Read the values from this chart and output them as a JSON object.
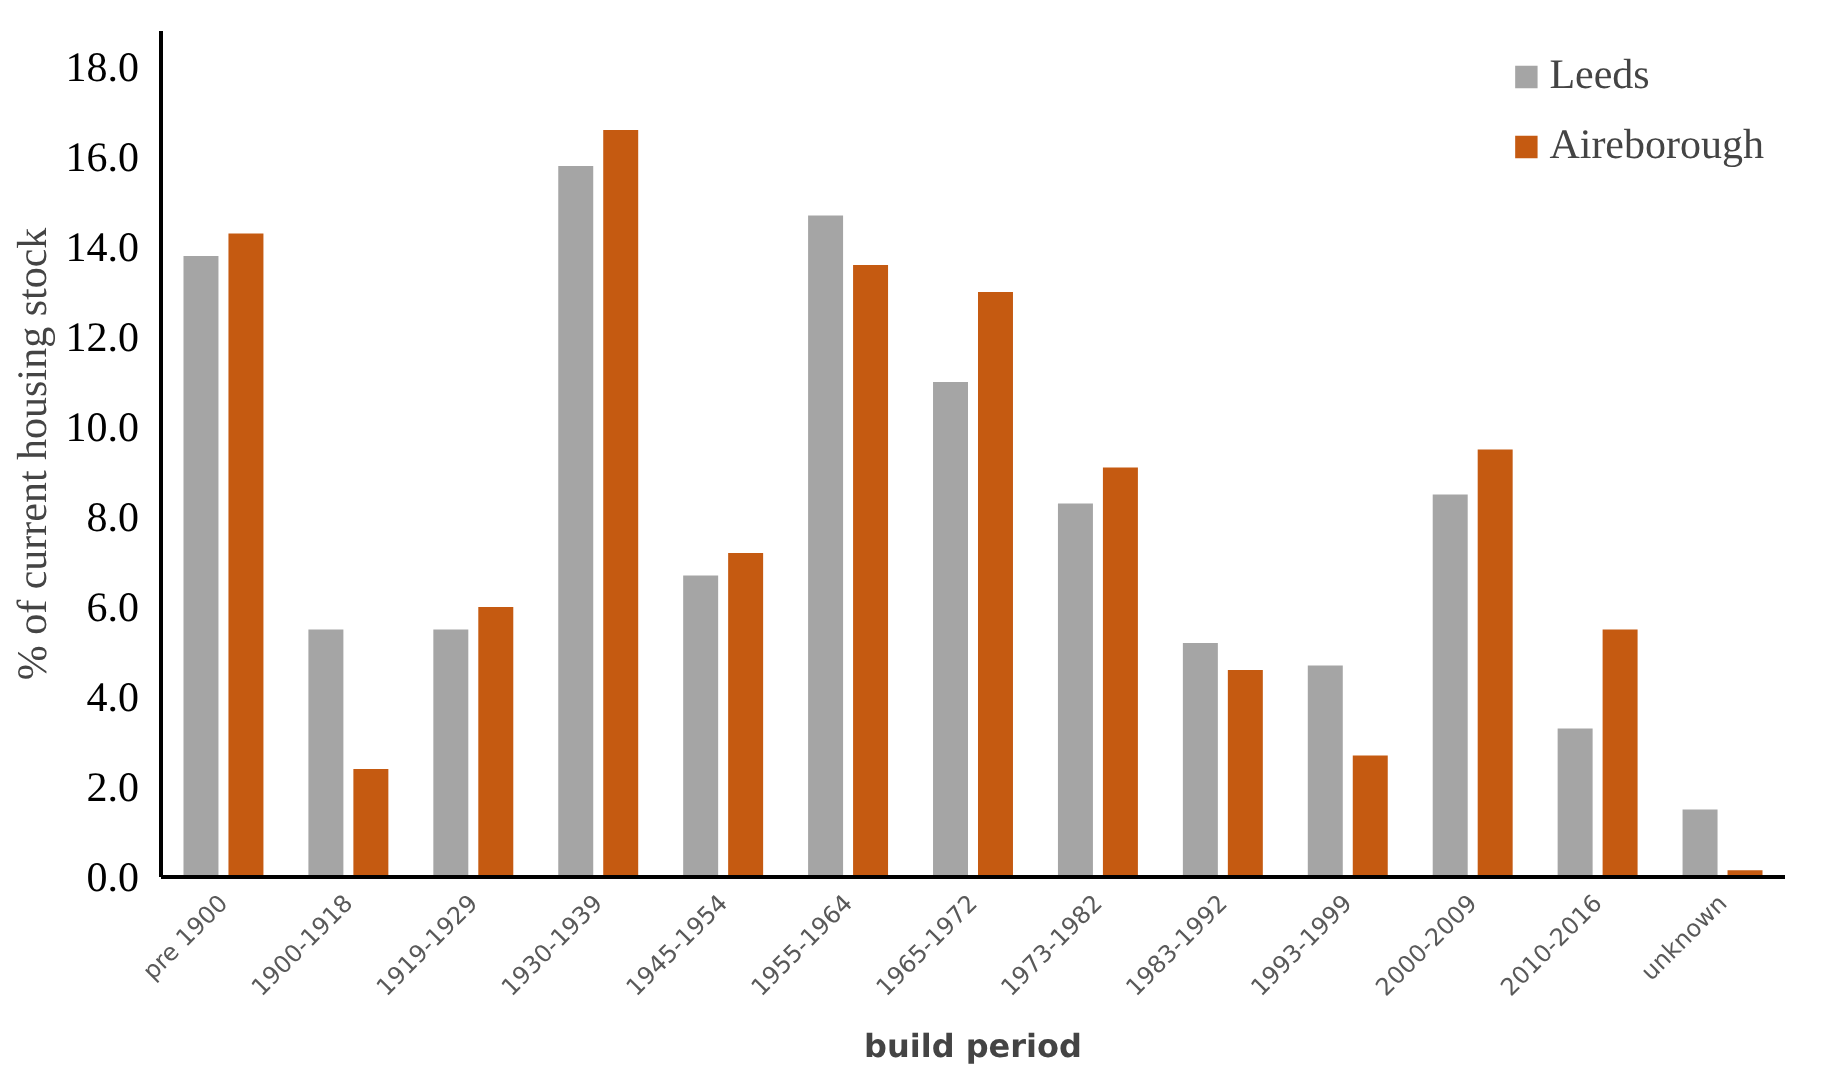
{
  "chart_data": {
    "type": "bar",
    "xlabel": "build period",
    "ylabel": "% of current housing stock",
    "categories": [
      "pre 1900",
      "1900-1918",
      "1919-1929",
      "1930-1939",
      "1945-1954",
      "1955-1964",
      "1965-1972",
      "1973-1982",
      "1983-1992",
      "1993-1999",
      "2000-2009",
      "2010-2016",
      "unknown"
    ],
    "series": [
      {
        "name": "Leeds",
        "color": "#a5a5a5",
        "values": [
          13.8,
          5.5,
          5.5,
          15.8,
          6.7,
          14.7,
          11.0,
          8.3,
          5.2,
          4.7,
          8.5,
          3.3,
          1.5
        ]
      },
      {
        "name": "Aireborough",
        "color": "#c55a11",
        "values": [
          14.3,
          2.4,
          6.0,
          16.6,
          7.2,
          13.6,
          13.0,
          9.1,
          4.6,
          2.7,
          9.5,
          5.5,
          0.15
        ]
      }
    ],
    "ylim": [
      0,
      18.8
    ],
    "yticks": [
      {
        "value": 0,
        "label": "0.0"
      },
      {
        "value": 2,
        "label": "2.0"
      },
      {
        "value": 4,
        "label": "4.0"
      },
      {
        "value": 6,
        "label": "6.0"
      },
      {
        "value": 8,
        "label": "8.0"
      },
      {
        "value": 10,
        "label": "10.0"
      },
      {
        "value": 12,
        "label": "12.0"
      },
      {
        "value": 14,
        "label": "14.0"
      },
      {
        "value": 16,
        "label": "16.0"
      },
      {
        "value": 18,
        "label": "18.0"
      }
    ],
    "grid": false,
    "legend": "top right"
  }
}
